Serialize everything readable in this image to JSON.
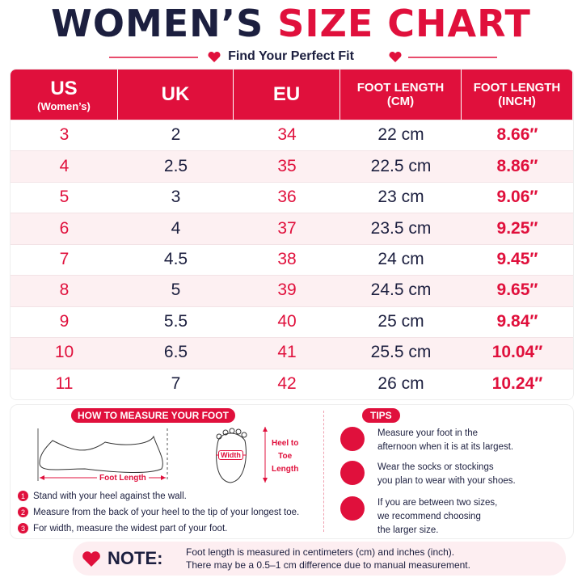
{
  "header": {
    "title_dark": "WOMEN’S",
    "title_red": "SIZE CHART",
    "subtitle": "Find Your Perfect Fit"
  },
  "table": {
    "headers": [
      [
        "US",
        "(Women’s)"
      ],
      [
        "UK"
      ],
      [
        "EU"
      ],
      [
        "FOOT LENGTH",
        "(CM)"
      ],
      [
        "FOOT LENGTH",
        "(INCH)"
      ]
    ],
    "rows": [
      [
        "3",
        "2",
        "34",
        "22 cm",
        "8.66″"
      ],
      [
        "4",
        "2.5",
        "35",
        "22.5 cm",
        "8.86″"
      ],
      [
        "5",
        "3",
        "36",
        "23 cm",
        "9.06″"
      ],
      [
        "6",
        "4",
        "37",
        "23.5 cm",
        "9.25″"
      ],
      [
        "7",
        "4.5",
        "38",
        "24 cm",
        "9.45″"
      ],
      [
        "8",
        "5",
        "39",
        "24.5 cm",
        "9.65″"
      ],
      [
        "9",
        "5.5",
        "40",
        "25 cm",
        "9.84″"
      ],
      [
        "10",
        "6.5",
        "41",
        "25.5 cm",
        "10.04″"
      ],
      [
        "11",
        "7",
        "42",
        "26 cm",
        "10.24″"
      ]
    ]
  },
  "measure": {
    "title": "HOW TO MEASURE YOUR FOOT",
    "foot_length": "Foot Length",
    "width": "Width",
    "heel_to_toe": [
      "Heel to",
      "Toe",
      "Length"
    ],
    "steps": [
      {
        "number": "1",
        "text": "Stand with your heel against the wall."
      },
      {
        "number": "2",
        "text": "Measure from the back of your heel to the tip of your longest toe."
      },
      {
        "number": "3",
        "text": "For width, measure the widest part of your foot."
      }
    ]
  },
  "tips": {
    "title": "TIPS",
    "items": [
      [
        "Measure your foot in the",
        "afternoon when it is at its largest."
      ],
      [
        "Wear the socks or stockings",
        "you plan to wear with your shoes."
      ],
      [
        "If you are between two sizes,",
        "we recommend choosing",
        "the larger size."
      ]
    ]
  },
  "note": {
    "label": "NOTE:",
    "lines": [
      "Foot length is measured in centimeters (cm) and inches (inch).",
      "There may be a 0.5–1 cm difference due to manual measurement."
    ]
  }
}
